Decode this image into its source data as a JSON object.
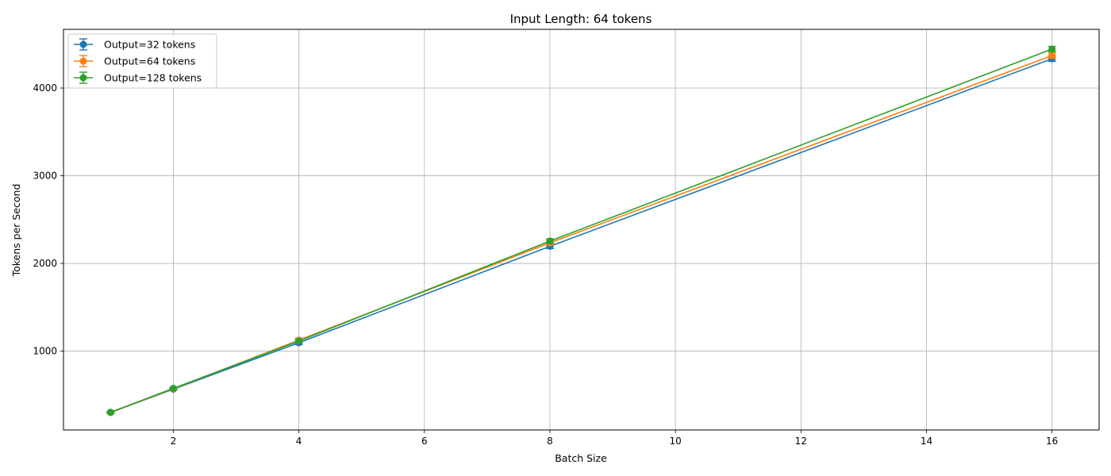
{
  "chart_data": {
    "type": "line",
    "title": "Input Length: 64 tokens",
    "xlabel": "Batch Size",
    "ylabel": "Tokens per Second",
    "xlim": [
      0.25,
      16.75
    ],
    "ylim": [
      100,
      4670
    ],
    "x_ticks": [
      2,
      4,
      6,
      8,
      10,
      12,
      14,
      16
    ],
    "y_ticks": [
      1000,
      2000,
      3000,
      4000
    ],
    "grid": true,
    "legend_position": "top-left",
    "x": [
      1,
      2,
      4,
      8,
      16
    ],
    "series": [
      {
        "name": "Output=32 tokens",
        "color": "#1f77b4",
        "marker": "circle",
        "values": [
          300,
          565,
          1095,
          2195,
          4335
        ],
        "errors": [
          10,
          10,
          20,
          25,
          30
        ]
      },
      {
        "name": "Output=64 tokens",
        "color": "#ff7f0e",
        "marker": "circle",
        "values": [
          300,
          570,
          1125,
          2235,
          4370
        ],
        "errors": [
          10,
          10,
          20,
          25,
          30
        ]
      },
      {
        "name": "Output=128 tokens",
        "color": "#2ca02c",
        "marker": "circle",
        "values": [
          302,
          575,
          1115,
          2255,
          4445
        ],
        "errors": [
          10,
          10,
          20,
          25,
          30
        ]
      }
    ]
  }
}
